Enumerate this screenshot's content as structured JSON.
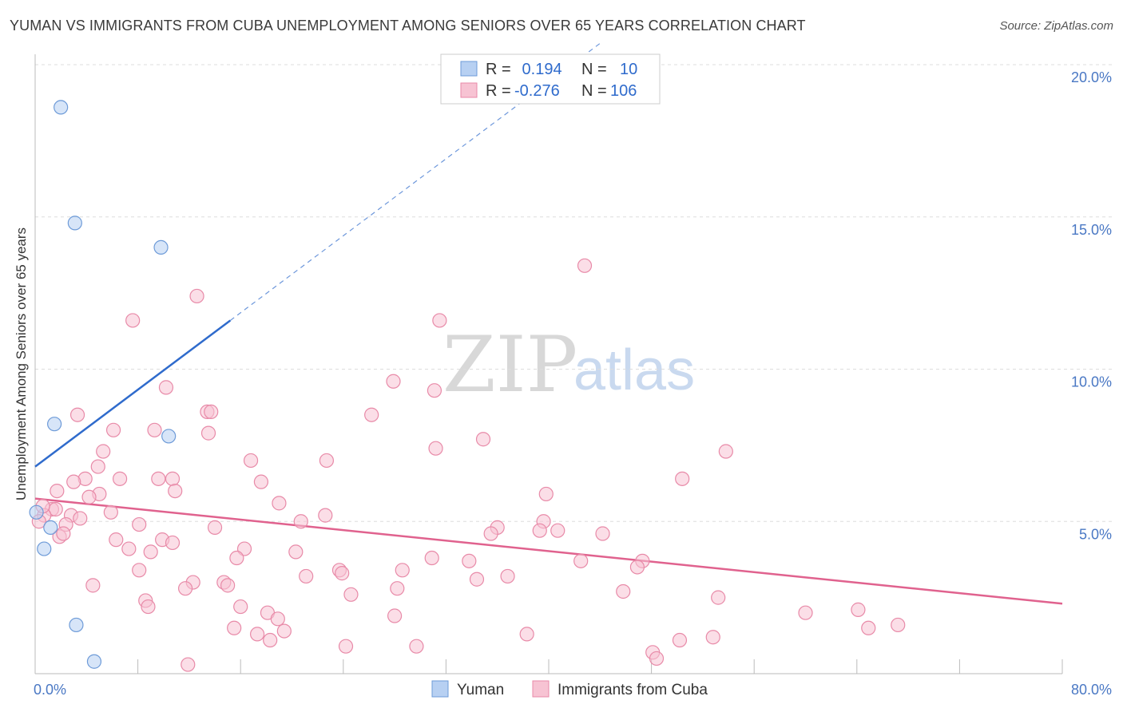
{
  "header": {
    "title": "YUMAN VS IMMIGRANTS FROM CUBA UNEMPLOYMENT AMONG SENIORS OVER 65 YEARS CORRELATION CHART",
    "source": "Source: ZipAtlas.com"
  },
  "watermark": {
    "zip": "ZIP",
    "atlas": "atlas"
  },
  "colors": {
    "yuman_fill": "#b7d0f2",
    "yuman_stroke": "#6e9bd8",
    "yuman_line": "#2f6bcc",
    "cuba_fill": "#f7c3d3",
    "cuba_stroke": "#e88aa8",
    "cuba_line": "#e0628e",
    "grid": "#dddddd",
    "tick_label": "#4a78c4"
  },
  "legend": {
    "rows": [
      {
        "r_label": "R =",
        "r_value": " 0.194",
        "n_label": "N =",
        "n_value": "10"
      },
      {
        "r_label": "R =",
        "r_value": "-0.276",
        "n_label": "N =",
        "n_value": "106"
      }
    ]
  },
  "bottom_legend": {
    "items": [
      "Yuman",
      "Immigrants from Cuba"
    ]
  },
  "chart_data": {
    "type": "scatter",
    "title": "YUMAN VS IMMIGRANTS FROM CUBA UNEMPLOYMENT AMONG SENIORS OVER 65 YEARS CORRELATION CHART",
    "xlabel": "",
    "ylabel": "Unemployment Among Seniors over 65 years",
    "xlim": [
      0,
      80
    ],
    "ylim": [
      0,
      20
    ],
    "x_tick_labels": [
      "0.0%",
      "80.0%"
    ],
    "y_ticks": [
      5,
      10,
      15,
      20
    ],
    "y_tick_labels": [
      "5.0%",
      "10.0%",
      "15.0%",
      "20.0%"
    ],
    "grid": true,
    "series": [
      {
        "name": "Yuman",
        "r": 0.194,
        "n": 10,
        "points": [
          [
            2.0,
            18.6
          ],
          [
            3.1,
            14.8
          ],
          [
            9.8,
            14.0
          ],
          [
            1.5,
            8.2
          ],
          [
            10.4,
            7.8
          ],
          [
            0.1,
            5.3
          ],
          [
            1.2,
            4.8
          ],
          [
            0.7,
            4.1
          ],
          [
            3.2,
            1.6
          ],
          [
            4.6,
            0.4
          ]
        ],
        "trend": {
          "x0": 0,
          "y0": 6.8,
          "x1": 15.2,
          "y1": 11.6,
          "extend_to_x": 44,
          "extend_to_y": 20.7
        }
      },
      {
        "name": "Immigrants from Cuba",
        "r": -0.276,
        "n": 106,
        "points": [
          [
            42.8,
            13.4
          ],
          [
            12.6,
            12.4
          ],
          [
            7.6,
            11.6
          ],
          [
            31.5,
            11.6
          ],
          [
            27.9,
            9.6
          ],
          [
            10.2,
            9.4
          ],
          [
            31.1,
            9.3
          ],
          [
            3.3,
            8.5
          ],
          [
            13.4,
            8.6
          ],
          [
            13.7,
            8.6
          ],
          [
            26.2,
            8.5
          ],
          [
            6.1,
            8.0
          ],
          [
            9.3,
            8.0
          ],
          [
            13.5,
            7.9
          ],
          [
            34.9,
            7.7
          ],
          [
            31.2,
            7.4
          ],
          [
            5.3,
            7.3
          ],
          [
            53.8,
            7.3
          ],
          [
            16.8,
            7.0
          ],
          [
            22.7,
            7.0
          ],
          [
            4.9,
            6.8
          ],
          [
            3.9,
            6.4
          ],
          [
            3.0,
            6.3
          ],
          [
            6.6,
            6.4
          ],
          [
            9.6,
            6.4
          ],
          [
            10.7,
            6.4
          ],
          [
            17.6,
            6.3
          ],
          [
            50.4,
            6.4
          ],
          [
            1.7,
            6.0
          ],
          [
            5.0,
            5.9
          ],
          [
            10.9,
            6.0
          ],
          [
            4.2,
            5.8
          ],
          [
            39.8,
            5.9
          ],
          [
            19.0,
            5.6
          ],
          [
            1.3,
            5.4
          ],
          [
            1.6,
            5.4
          ],
          [
            0.7,
            5.2
          ],
          [
            2.8,
            5.2
          ],
          [
            5.9,
            5.3
          ],
          [
            22.6,
            5.2
          ],
          [
            0.3,
            5.0
          ],
          [
            20.7,
            5.0
          ],
          [
            39.6,
            5.0
          ],
          [
            2.4,
            4.9
          ],
          [
            8.1,
            4.9
          ],
          [
            14.0,
            4.8
          ],
          [
            36.0,
            4.8
          ],
          [
            35.5,
            4.6
          ],
          [
            39.3,
            4.7
          ],
          [
            40.7,
            4.7
          ],
          [
            44.2,
            4.6
          ],
          [
            1.9,
            4.5
          ],
          [
            6.3,
            4.4
          ],
          [
            9.9,
            4.4
          ],
          [
            10.7,
            4.3
          ],
          [
            7.3,
            4.1
          ],
          [
            9.0,
            4.0
          ],
          [
            16.3,
            4.1
          ],
          [
            20.3,
            4.0
          ],
          [
            15.7,
            3.8
          ],
          [
            30.9,
            3.8
          ],
          [
            33.8,
            3.7
          ],
          [
            42.5,
            3.7
          ],
          [
            47.3,
            3.7
          ],
          [
            46.9,
            3.5
          ],
          [
            8.1,
            3.4
          ],
          [
            23.7,
            3.4
          ],
          [
            23.9,
            3.3
          ],
          [
            28.6,
            3.4
          ],
          [
            21.1,
            3.2
          ],
          [
            34.4,
            3.1
          ],
          [
            36.8,
            3.2
          ],
          [
            4.5,
            2.9
          ],
          [
            12.3,
            3.0
          ],
          [
            14.7,
            3.0
          ],
          [
            15.0,
            2.9
          ],
          [
            11.7,
            2.8
          ],
          [
            28.2,
            2.8
          ],
          [
            45.8,
            2.7
          ],
          [
            24.6,
            2.6
          ],
          [
            53.2,
            2.5
          ],
          [
            8.6,
            2.4
          ],
          [
            8.8,
            2.2
          ],
          [
            16.0,
            2.2
          ],
          [
            18.1,
            2.0
          ],
          [
            28.0,
            1.9
          ],
          [
            18.9,
            1.8
          ],
          [
            60.0,
            2.0
          ],
          [
            64.1,
            2.1
          ],
          [
            15.5,
            1.5
          ],
          [
            17.3,
            1.3
          ],
          [
            19.4,
            1.4
          ],
          [
            64.9,
            1.5
          ],
          [
            67.2,
            1.6
          ],
          [
            38.3,
            1.3
          ],
          [
            52.8,
            1.2
          ],
          [
            18.3,
            1.1
          ],
          [
            50.2,
            1.1
          ],
          [
            24.2,
            0.9
          ],
          [
            29.7,
            0.9
          ],
          [
            48.1,
            0.7
          ],
          [
            48.4,
            0.5
          ],
          [
            11.9,
            0.3
          ],
          [
            0.6,
            5.5
          ],
          [
            2.2,
            4.6
          ],
          [
            3.5,
            5.1
          ]
        ],
        "trend": {
          "x0": 0,
          "y0": 5.75,
          "x1": 80,
          "y1": 2.3
        }
      }
    ]
  }
}
